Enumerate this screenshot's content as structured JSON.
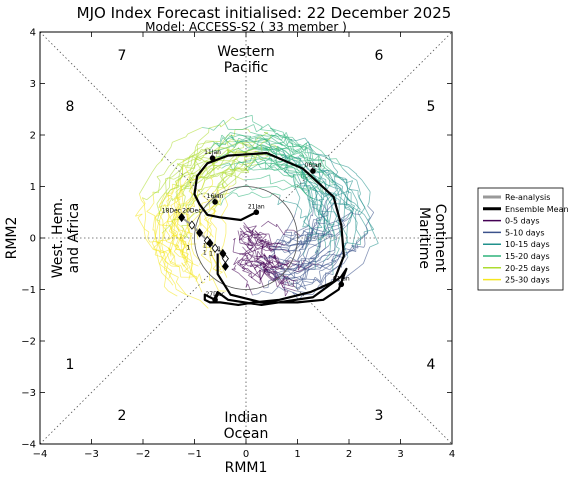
{
  "title": "MJO Index Forecast initialised:  22  December 2025",
  "subtitle": "Model: ACCESS-S2 ( 33 member )",
  "chart_data": {
    "type": "line",
    "xlabel": "RMM1",
    "ylabel": "RMM2",
    "xlim": [
      -4,
      4
    ],
    "ylim": [
      -4,
      4
    ],
    "xticks": [
      "−4",
      "−3",
      "−2",
      "−1",
      "0",
      "1",
      "2",
      "3",
      "4"
    ],
    "yticks": [
      "−4",
      "−3",
      "−2",
      "−1",
      "0",
      "1",
      "2",
      "3",
      "4"
    ],
    "phase_labels": [
      "1",
      "2",
      "3",
      "4",
      "5",
      "6",
      "7",
      "8"
    ],
    "regions": {
      "top": [
        "Western",
        "Pacific"
      ],
      "right": [
        "Maritime",
        "Continent"
      ],
      "bottom": [
        "Indian",
        "Ocean"
      ],
      "left": [
        "West. Hem.",
        "and Africa"
      ]
    },
    "legend": {
      "position": "right",
      "entries": [
        {
          "label": "Re-analysis",
          "color": "#999999"
        },
        {
          "label": "Ensemble Mean",
          "color": "#000000"
        },
        {
          "label": "0-5 days",
          "color": "#440154"
        },
        {
          "label": "5-10 days",
          "color": "#3b528b"
        },
        {
          "label": "10-15 days",
          "color": "#21918c"
        },
        {
          "label": "15-20 days",
          "color": "#2fb47c"
        },
        {
          "label": "20-25 days",
          "color": "#addc30"
        },
        {
          "label": "25-30 days",
          "color": "#f5e61f"
        }
      ]
    },
    "reanalysis": {
      "x": [
        -1.25,
        -1.05,
        -0.9,
        -0.75,
        -0.7,
        -0.6,
        -0.45,
        -0.4,
        -0.4
      ],
      "y": [
        0.4,
        0.25,
        0.1,
        -0.05,
        -0.1,
        -0.2,
        -0.3,
        -0.4,
        -0.55
      ],
      "labels": [
        {
          "text": "18Dec",
          "x": -1.45,
          "y": 0.5
        },
        {
          "text": "20Dec",
          "x": -1.05,
          "y": 0.5
        },
        {
          "text": "1",
          "x": -1.12,
          "y": -0.22
        },
        {
          "text": "1",
          "x": -0.8,
          "y": -0.18
        },
        {
          "text": "1",
          "x": -0.52,
          "y": -0.25
        },
        {
          "text": "1",
          "x": -0.8,
          "y": -0.32
        },
        {
          "text": "1",
          "x": -0.68,
          "y": -0.34
        },
        {
          "text": "1",
          "x": -0.45,
          "y": -0.38
        }
      ]
    },
    "ensemble_mean": {
      "x": [
        -0.55,
        -0.55,
        -0.3,
        0.3,
        1.0,
        1.5,
        1.8,
        1.95,
        1.85,
        1.3,
        0.3,
        -0.35,
        -0.55,
        -0.6,
        -0.55,
        -0.6,
        -0.8,
        -0.8,
        -0.7,
        -0.6,
        -0.5,
        -0.15,
        0.15,
        0.65,
        1.25,
        1.7,
        1.9,
        1.85,
        1.7,
        1.1,
        0.4,
        -0.35,
        -0.75,
        -0.95,
        -1.0,
        -0.9,
        -0.75,
        -0.5,
        -0.1,
        0.2
      ],
      "y": [
        -0.3,
        -0.7,
        -1.1,
        -1.25,
        -1.25,
        -1.2,
        -1.0,
        -0.6,
        -0.75,
        -1.15,
        -1.3,
        -1.2,
        -1.05,
        -1.15,
        -1.1,
        -1.2,
        -1.1,
        -1.2,
        -1.25,
        -1.25,
        -1.25,
        -1.3,
        -1.25,
        -1.2,
        -1.05,
        -0.85,
        -0.35,
        0.25,
        0.8,
        1.35,
        1.65,
        1.6,
        1.45,
        1.2,
        0.85,
        0.65,
        0.45,
        0.4,
        0.35,
        0.5
      ],
      "labels": [
        {
          "text": "27Dec",
          "x": -0.6,
          "y": -1.2
        },
        {
          "text": "01Jan",
          "x": 1.85,
          "y": -0.9
        },
        {
          "text": "06Jan",
          "x": 1.3,
          "y": 1.3
        },
        {
          "text": "11Jan",
          "x": -0.65,
          "y": 1.55
        },
        {
          "text": "16Jan",
          "x": -0.6,
          "y": 0.7
        },
        {
          "text": "21Jan",
          "x": 0.2,
          "y": 0.5
        }
      ]
    }
  }
}
